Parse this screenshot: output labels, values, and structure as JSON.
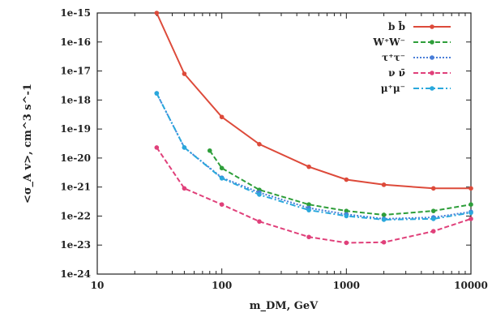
{
  "chart_data": {
    "type": "line",
    "title": "",
    "xlabel": "m_DM, GeV",
    "ylabel": "<σ_A v>, cm^3 s^-1",
    "xscale": "log",
    "yscale": "log",
    "xlim": [
      10,
      10000
    ],
    "ylim": [
      1e-24,
      1e-15
    ],
    "x_ticks": [
      10,
      100,
      1000,
      10000
    ],
    "y_ticks": [
      1e-24,
      1e-23,
      1e-22,
      1e-21,
      1e-20,
      1e-19,
      1e-18,
      1e-17,
      1e-16,
      1e-15
    ],
    "x_tick_labels": [
      "10",
      "100",
      "1000",
      "10000"
    ],
    "y_tick_labels": [
      "1e-24",
      "1e-23",
      "1e-22",
      "1e-21",
      "1e-20",
      "1e-19",
      "1e-18",
      "1e-17",
      "1e-16",
      "1e-15"
    ],
    "grid": false,
    "legend_position": "top-right",
    "series": [
      {
        "name": "b b̄",
        "color": "#dd4a3a",
        "dash": "solid",
        "x": [
          30,
          50,
          100,
          200,
          500,
          1000,
          2000,
          5000,
          10000
        ],
        "y": [
          1e-15,
          8e-18,
          2.6e-19,
          3e-20,
          5e-21,
          1.8e-21,
          1.2e-21,
          9e-22,
          9e-22
        ]
      },
      {
        "name": "W⁺W⁻",
        "color": "#2e9e3a",
        "dash": "dashed",
        "x": [
          80,
          100,
          200,
          500,
          1000,
          2000,
          5000,
          10000
        ],
        "y": [
          1.8e-20,
          4.5e-21,
          8e-22,
          2.5e-22,
          1.5e-22,
          1.1e-22,
          1.5e-22,
          2.5e-22
        ]
      },
      {
        "name": "τ⁺τ⁻",
        "color": "#4a7ed8",
        "dash": "dotted",
        "x": [
          30,
          50,
          100,
          200,
          500,
          1000,
          2000,
          5000,
          10000
        ],
        "y": [
          1.7e-18,
          2.3e-20,
          2.1e-21,
          6.5e-22,
          1.9e-22,
          1.15e-22,
          8e-23,
          9e-23,
          1.4e-22
        ]
      },
      {
        "name": "ν ν̄",
        "color": "#e0407a",
        "dash": "dashed",
        "x": [
          30,
          50,
          100,
          200,
          500,
          1000,
          2000,
          5000,
          10000
        ],
        "y": [
          2.3e-20,
          9e-22,
          2.5e-22,
          6.5e-23,
          1.9e-23,
          1.2e-23,
          1.25e-23,
          3e-23,
          8e-23
        ]
      },
      {
        "name": "μ⁺μ⁻",
        "color": "#2aa8dc",
        "dash": "dashdot",
        "x": [
          30,
          50,
          100,
          200,
          500,
          1000,
          2000,
          5000,
          10000
        ],
        "y": [
          1.7e-18,
          2.3e-20,
          2e-21,
          5.5e-22,
          1.6e-22,
          1e-22,
          7.5e-23,
          8e-23,
          1.3e-22
        ]
      }
    ]
  }
}
